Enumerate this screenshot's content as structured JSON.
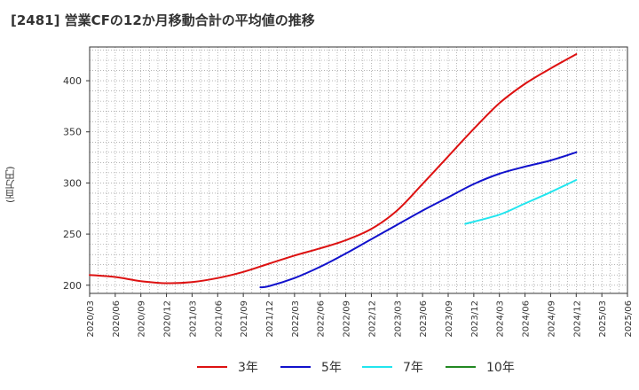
{
  "title": "[2481]  営業CFの12か月移動合計の平均値の推移",
  "chart_data": {
    "type": "line",
    "title": "[2481]  営業CFの12か月移動合計の平均値の推移",
    "ylabel": "(百万円)",
    "xlabel": "",
    "ylim": [
      192,
      433
    ],
    "yticks": [
      200,
      250,
      300,
      350,
      400
    ],
    "xticks": [
      "2020/03",
      "2020/06",
      "2020/09",
      "2020/12",
      "2021/03",
      "2021/06",
      "2021/09",
      "2021/12",
      "2022/03",
      "2022/06",
      "2022/09",
      "2022/12",
      "2023/03",
      "2023/06",
      "2023/09",
      "2023/12",
      "2024/03",
      "2024/06",
      "2024/09",
      "2024/12",
      "2025/03",
      "2025/06"
    ],
    "grid": true,
    "legend_position": "bottom",
    "series": [
      {
        "name": "3年",
        "color": "#dd1111",
        "points": [
          [
            "2020/03",
            210
          ],
          [
            "2020/06",
            208
          ],
          [
            "2020/09",
            204
          ],
          [
            "2020/12",
            202
          ],
          [
            "2021/03",
            203
          ],
          [
            "2021/06",
            207
          ],
          [
            "2021/09",
            213
          ],
          [
            "2021/12",
            221
          ],
          [
            "2022/03",
            229
          ],
          [
            "2022/06",
            236
          ],
          [
            "2022/09",
            244
          ],
          [
            "2022/12",
            255
          ],
          [
            "2023/03",
            273
          ],
          [
            "2023/06",
            299
          ],
          [
            "2023/09",
            326
          ],
          [
            "2023/12",
            353
          ],
          [
            "2024/03",
            378
          ],
          [
            "2024/06",
            397
          ],
          [
            "2024/09",
            412
          ],
          [
            "2024/12",
            426
          ]
        ]
      },
      {
        "name": "5年",
        "color": "#1111cc",
        "points": [
          [
            "2021/11",
            198
          ],
          [
            "2021/12",
            199
          ],
          [
            "2022/03",
            207
          ],
          [
            "2022/06",
            218
          ],
          [
            "2022/09",
            231
          ],
          [
            "2022/12",
            245
          ],
          [
            "2023/03",
            259
          ],
          [
            "2023/06",
            273
          ],
          [
            "2023/09",
            286
          ],
          [
            "2023/12",
            299
          ],
          [
            "2024/03",
            309
          ],
          [
            "2024/06",
            316
          ],
          [
            "2024/09",
            322
          ],
          [
            "2024/12",
            330
          ]
        ]
      },
      {
        "name": "7年",
        "color": "#22e5ee",
        "points": [
          [
            "2023/11",
            260
          ],
          [
            "2024/03",
            269
          ],
          [
            "2024/06",
            280
          ],
          [
            "2024/09",
            291
          ],
          [
            "2024/12",
            303
          ]
        ]
      },
      {
        "name": "10年",
        "color": "#228822",
        "points": []
      }
    ]
  }
}
